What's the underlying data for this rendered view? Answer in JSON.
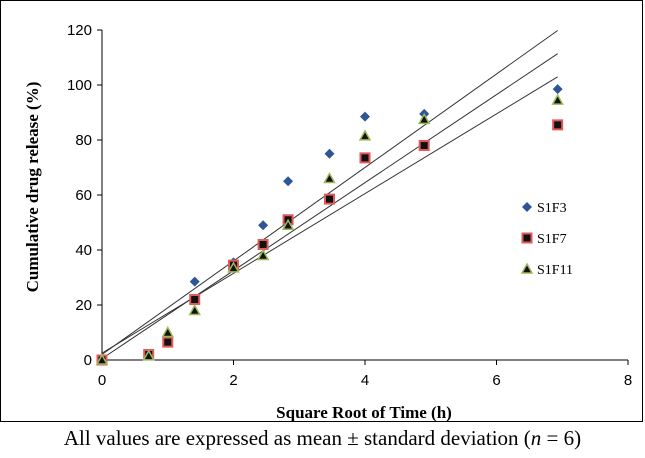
{
  "chart_data": {
    "type": "scatter",
    "title": "",
    "xlabel": "Square Root of Time (h)",
    "ylabel": "Cumulative drug release (%)",
    "xlim": [
      0,
      8
    ],
    "ylim": [
      0,
      120
    ],
    "x_ticks": [
      "0",
      "2",
      "4",
      "6",
      "8"
    ],
    "y_ticks": [
      "0",
      "20",
      "40",
      "60",
      "80",
      "100",
      "120"
    ],
    "grid": false,
    "legend_position": "right",
    "series": [
      {
        "name": "S1F3",
        "marker": "diamond",
        "color": "#2f5597",
        "x": [
          0,
          0.71,
          1,
          1.41,
          2,
          2.45,
          2.83,
          3.46,
          4,
          4.9,
          6.93
        ],
        "y": [
          0,
          2,
          8,
          28.5,
          35.5,
          49,
          65,
          75,
          88.5,
          89.5,
          98.5
        ],
        "trendline": [
          2,
          17
        ]
      },
      {
        "name": "S1F7",
        "marker": "square",
        "color": "#e05a5a",
        "x": [
          0,
          0.71,
          1,
          1.41,
          2,
          2.45,
          2.83,
          3.46,
          4,
          4.9,
          6.93
        ],
        "y": [
          0,
          2,
          6.5,
          22,
          34.5,
          42,
          51,
          58.5,
          73.5,
          78,
          85.5
        ],
        "trendline": [
          0.5,
          16
        ]
      },
      {
        "name": "S1F11",
        "marker": "triangle",
        "color": "#9bbb59",
        "x": [
          0,
          0.71,
          1,
          1.41,
          2,
          2.45,
          2.83,
          3.46,
          4,
          4.9,
          6.93
        ],
        "y": [
          0,
          1.5,
          10,
          18,
          33.5,
          38,
          49,
          66,
          81.5,
          87.5,
          94.5
        ],
        "trendline": [
          2.5,
          14.5
        ]
      }
    ]
  },
  "caption": {
    "before": "All values are expressed as mean ± standard deviation (",
    "n": "n",
    "after": " = 6)"
  }
}
